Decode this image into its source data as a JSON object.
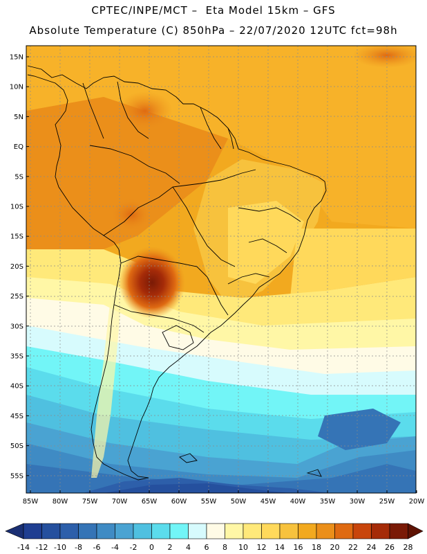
{
  "title_line1": "CPTEC/INPE/MCT –  Eta Model 15km – GFS",
  "title_line2": "Absolute Temperature (C) 850hPa – 22/07/2020 12UTC fct=98h",
  "lat_labels": [
    "15N",
    "10N",
    "5N",
    "EQ",
    "5S",
    "10S",
    "15S",
    "20S",
    "25S",
    "30S",
    "35S",
    "40S",
    "45S",
    "50S",
    "55S"
  ],
  "lon_labels": [
    "85W",
    "80W",
    "75W",
    "70W",
    "65W",
    "60W",
    "55W",
    "50W",
    "45W",
    "40W",
    "35W",
    "30W",
    "25W",
    "20W"
  ],
  "colorbar": {
    "labels": [
      "-14",
      "-12",
      "-10",
      "-8",
      "-6",
      "-4",
      "-2",
      "0",
      "2",
      "4",
      "6",
      "8",
      "10",
      "12",
      "14",
      "16",
      "18",
      "20",
      "22",
      "24",
      "26",
      "28"
    ],
    "colors": [
      "#1f3e91",
      "#25509e",
      "#2d5faa",
      "#3574b6",
      "#3f8bc4",
      "#4aa3d2",
      "#4fc0e0",
      "#5bdcec",
      "#72f5f7",
      "#d7fbfd",
      "#fffbe6",
      "#fff7a6",
      "#ffe97a",
      "#ffd95b",
      "#f7c23d",
      "#f2a91f",
      "#eb8f1a",
      "#df6a12",
      "#c8450c",
      "#a52b08",
      "#7a1a06"
    ]
  }
}
